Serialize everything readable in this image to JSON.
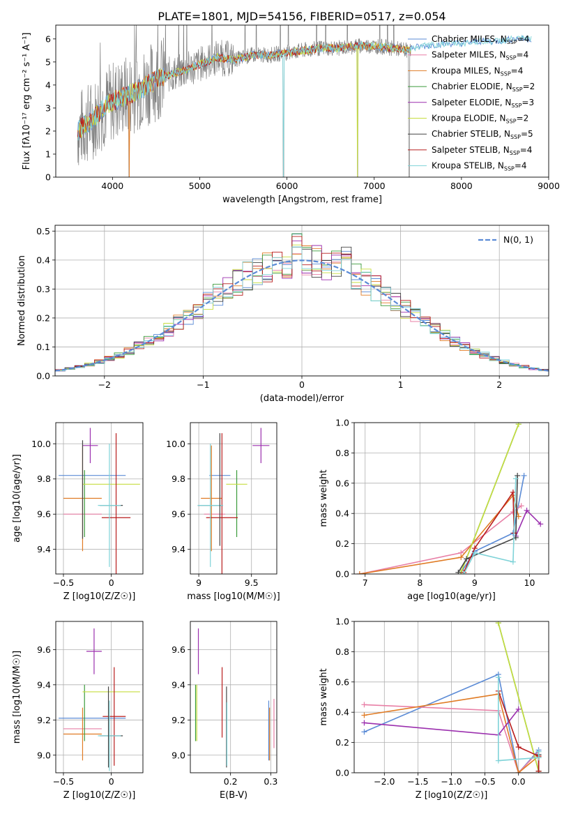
{
  "figure": {
    "title": "PLATE=1801, MJD=54156, FIBERID=0517, z=0.054"
  },
  "colors": {
    "Chabrier MILES": "#5b8bd6",
    "Salpeter MILES": "#e87fa6",
    "Kroupa MILES": "#e07b24",
    "Chabrier ELODIE": "#3a9b3a",
    "Salpeter ELODIE": "#9b2fae",
    "Kroupa ELODIE": "#c6dd3f",
    "Chabrier STELIB": "#444444",
    "Salpeter STELIB": "#b81c1c",
    "Kroupa STELIB": "#7fd3d8",
    "data": "#808080",
    "normal": "#5b8bd6"
  },
  "chart_data": [
    {
      "id": "spectrum",
      "type": "line",
      "title": "PLATE=1801, MJD=54156, FIBERID=0517, z=0.054",
      "xlabel": "wavelength [Angstrom, rest frame]",
      "ylabel": "Flux [fλ10⁻¹⁷ erg cm⁻² s⁻¹ A⁻¹]",
      "xlim": [
        3350,
        9000
      ],
      "ylim": [
        0,
        6.6
      ],
      "xticks": [
        4000,
        5000,
        6000,
        7000,
        8000,
        9000
      ],
      "yticks": [
        0,
        1,
        2,
        3,
        4,
        5,
        6
      ],
      "legend_position": "upper right",
      "legend": [
        "Chabrier MILES, N_SSP=4",
        "Salpeter MILES, N_SSP=4",
        "Kroupa MILES, N_SSP=4",
        "Chabrier ELODIE, N_SSP=2",
        "Salpeter ELODIE, N_SSP=3",
        "Kroupa ELODIE, N_SSP=2",
        "Chabrier STELIB, N_SSP=5",
        "Salpeter STELIB, N_SSP=4",
        "Kroupa STELIB, N_SSP=4"
      ],
      "continuum_wavelength": [
        3600,
        3700,
        3800,
        3900,
        4000,
        4200,
        4400,
        4600,
        4800,
        5000,
        5200,
        5400,
        5600,
        5800,
        6000,
        6200,
        6400,
        6600,
        6800,
        7000,
        7200,
        7400
      ],
      "continuum_flux": [
        2.0,
        2.3,
        2.6,
        3.0,
        3.3,
        3.6,
        4.0,
        4.4,
        4.6,
        4.9,
        5.2,
        5.1,
        5.3,
        5.3,
        5.4,
        5.5,
        5.6,
        5.6,
        5.7,
        5.7,
        5.6,
        5.5
      ],
      "model_extension_wavelength": [
        7400,
        7600,
        7800,
        8000,
        8200,
        8400,
        8600,
        8800
      ],
      "model_extension_flux": [
        5.6,
        5.7,
        5.8,
        5.8,
        5.9,
        5.9,
        6.0,
        6.0
      ],
      "notable_dips": [
        {
          "wavelength": 4190,
          "flux": 0.0
        },
        {
          "wavelength": 5960,
          "flux": 0.0
        },
        {
          "wavelength": 6810,
          "flux": 0.0
        },
        {
          "wavelength": 7400,
          "flux": 0.0
        }
      ]
    },
    {
      "id": "residuals",
      "type": "line",
      "xlabel": "(data-model)/error",
      "ylabel": "Normed distribution",
      "xlim": [
        -2.5,
        2.5
      ],
      "ylim": [
        0,
        0.52
      ],
      "xticks": [
        -2,
        -1,
        0,
        1,
        2
      ],
      "yticks": [
        0.0,
        0.1,
        0.2,
        0.3,
        0.4,
        0.5
      ],
      "legend_position": "upper right",
      "legend": [
        "N(0, 1)"
      ],
      "curve": "normal pdf, mean 0, sigma 1",
      "bin_width": 0.1,
      "bin_start": -2.5,
      "bins": 50
    },
    {
      "id": "age_vs_Z",
      "type": "scatter",
      "xlabel": "Z [log10(Z/Z☉)]",
      "ylabel": "age  [log10(age/yr)]",
      "xlim": [
        -0.58,
        0.33
      ],
      "ylim": [
        9.26,
        10.12
      ],
      "xticks": [
        -0.5,
        0.0
      ],
      "yticks": [
        9.4,
        9.6,
        9.8,
        10.0
      ],
      "points": [
        {
          "model": "Chabrier MILES",
          "x": -0.2,
          "y": 9.82,
          "xerr": 0.35,
          "yerr": 0.0
        },
        {
          "model": "Salpeter MILES",
          "x": -0.3,
          "y": 9.6,
          "xerr": 0.2,
          "yerr": 0.0
        },
        {
          "model": "Kroupa MILES",
          "x": -0.3,
          "y": 9.69,
          "xerr": 0.2,
          "yerr": 0.3
        },
        {
          "model": "Chabrier ELODIE",
          "x": -0.28,
          "y": 9.66,
          "xerr": 0.0,
          "yerr": 0.19
        },
        {
          "model": "Salpeter ELODIE",
          "x": -0.22,
          "y": 9.99,
          "xerr": 0.08,
          "yerr": 0.1
        },
        {
          "model": "Kroupa ELODIE",
          "x": 0.0,
          "y": 9.77,
          "xerr": 0.3,
          "yerr": 0.0
        },
        {
          "model": "Chabrier STELIB",
          "x": 0.0,
          "y": 9.65,
          "xerr": 0.12,
          "yerr": 0.0
        },
        {
          "model": "Salpeter STELIB",
          "x": 0.05,
          "y": 9.58,
          "xerr": 0.15,
          "yerr": 0.48
        },
        {
          "model": "Kroupa STELIB",
          "x": -0.02,
          "y": 9.65,
          "xerr": 0.12,
          "yerr": 0.35
        },
        {
          "model": "Chabrier STELIB",
          "x": -0.3,
          "y": 9.74,
          "xerr": 0.0,
          "yerr": 0.28
        }
      ]
    },
    {
      "id": "age_vs_mass",
      "type": "scatter",
      "xlabel": "mass [log10(M/M☉)]",
      "ylabel": "",
      "xlim": [
        8.92,
        9.74
      ],
      "ylim": [
        9.26,
        10.12
      ],
      "xticks": [
        9.0,
        9.5
      ],
      "yticks": [
        9.4,
        9.6,
        9.8,
        10.0
      ],
      "points": [
        {
          "model": "Chabrier MILES",
          "x": 9.2,
          "y": 9.82,
          "xerr": 0.1,
          "yerr": 0.0
        },
        {
          "model": "Salpeter MILES",
          "x": 9.15,
          "y": 9.6,
          "xerr": 0.1,
          "yerr": 0.0
        },
        {
          "model": "Kroupa MILES",
          "x": 9.12,
          "y": 9.69,
          "xerr": 0.1,
          "yerr": 0.3
        },
        {
          "model": "Chabrier ELODIE",
          "x": 9.36,
          "y": 9.66,
          "xerr": 0.0,
          "yerr": 0.19
        },
        {
          "model": "Salpeter ELODIE",
          "x": 9.59,
          "y": 9.99,
          "xerr": 0.08,
          "yerr": 0.1
        },
        {
          "model": "Kroupa ELODIE",
          "x": 9.36,
          "y": 9.77,
          "xerr": 0.1,
          "yerr": 0.0
        },
        {
          "model": "Chabrier STELIB",
          "x": 9.11,
          "y": 9.65,
          "xerr": 0.12,
          "yerr": 0.0
        },
        {
          "model": "Salpeter STELIB",
          "x": 9.22,
          "y": 9.58,
          "xerr": 0.15,
          "yerr": 0.48
        },
        {
          "model": "Kroupa STELIB",
          "x": 9.11,
          "y": 9.65,
          "xerr": 0.12,
          "yerr": 0.35
        },
        {
          "model": "Chabrier STELIB",
          "x": 9.2,
          "y": 9.74,
          "xerr": 0.0,
          "yerr": 0.32
        }
      ]
    },
    {
      "id": "weight_vs_age",
      "type": "line",
      "xlabel": "age  [log10(age/yr)]",
      "ylabel": "mass weight",
      "xlim": [
        6.8,
        10.35
      ],
      "ylim": [
        0,
        1.0
      ],
      "xticks": [
        7,
        8,
        9,
        10
      ],
      "yticks": [
        0.0,
        0.2,
        0.4,
        0.6,
        0.8,
        1.0
      ],
      "series": [
        {
          "model": "Chabrier MILES",
          "x": [
            8.75,
            9.0,
            9.7,
            9.9
          ],
          "y": [
            0.01,
            0.15,
            0.27,
            0.65
          ]
        },
        {
          "model": "Salpeter MILES",
          "x": [
            6.9,
            8.75,
            9.7,
            9.85
          ],
          "y": [
            0.0,
            0.14,
            0.41,
            0.45
          ]
        },
        {
          "model": "Kroupa MILES",
          "x": [
            6.9,
            8.75,
            9.7,
            9.8
          ],
          "y": [
            0.0,
            0.11,
            0.52,
            0.38
          ]
        },
        {
          "model": "Chabrier ELODIE",
          "x": [
            8.75,
            9.8
          ],
          "y": [
            0.01,
            0.99
          ]
        },
        {
          "model": "Salpeter ELODIE",
          "x": [
            9.75,
            9.95,
            10.2
          ],
          "y": [
            0.25,
            0.42,
            0.33
          ]
        },
        {
          "model": "Kroupa ELODIE",
          "x": [
            8.75,
            9.8
          ],
          "y": [
            0.01,
            0.99
          ]
        },
        {
          "model": "Chabrier STELIB",
          "x": [
            8.7,
            8.85,
            9.75,
            9.78
          ],
          "y": [
            0.01,
            0.1,
            0.24,
            0.65
          ]
        },
        {
          "model": "Salpeter STELIB",
          "x": [
            8.8,
            9.0,
            9.7,
            9.72
          ],
          "y": [
            0.01,
            0.17,
            0.54,
            0.27
          ]
        },
        {
          "model": "Kroupa STELIB",
          "x": [
            8.8,
            9.0,
            9.7,
            9.75
          ],
          "y": [
            0.0,
            0.14,
            0.08,
            0.63
          ]
        }
      ]
    },
    {
      "id": "mass_vs_Z",
      "type": "scatter",
      "xlabel": "Z [log10(Z/Z☉)]",
      "ylabel": "mass [log10(M/M☉)]",
      "xlim": [
        -0.58,
        0.33
      ],
      "ylim": [
        8.9,
        9.76
      ],
      "xticks": [
        -0.5,
        0.0
      ],
      "yticks": [
        9.0,
        9.2,
        9.4,
        9.6
      ],
      "points": [
        {
          "model": "Chabrier MILES",
          "x": -0.2,
          "y": 9.21,
          "xerr": 0.35,
          "yerr": 0.0
        },
        {
          "model": "Salpeter MILES",
          "x": -0.3,
          "y": 9.15,
          "xerr": 0.2,
          "yerr": 0.0
        },
        {
          "model": "Kroupa MILES",
          "x": -0.3,
          "y": 9.12,
          "xerr": 0.2,
          "yerr": 0.15
        },
        {
          "model": "Chabrier ELODIE",
          "x": -0.28,
          "y": 9.24,
          "xerr": 0.0,
          "yerr": 0.16
        },
        {
          "model": "Salpeter ELODIE",
          "x": -0.18,
          "y": 9.59,
          "xerr": 0.08,
          "yerr": 0.13
        },
        {
          "model": "Kroupa ELODIE",
          "x": 0.0,
          "y": 9.36,
          "xerr": 0.3,
          "yerr": 0.0
        },
        {
          "model": "Chabrier STELIB",
          "x": 0.0,
          "y": 9.11,
          "xerr": 0.12,
          "yerr": 0.0
        },
        {
          "model": "Salpeter STELIB",
          "x": 0.03,
          "y": 9.22,
          "xerr": 0.12,
          "yerr": 0.28
        },
        {
          "model": "Kroupa STELIB",
          "x": -0.02,
          "y": 9.11,
          "xerr": 0.12,
          "yerr": 0.2
        },
        {
          "model": "Chabrier STELIB",
          "x": -0.03,
          "y": 9.16,
          "xerr": 0.0,
          "yerr": 0.23
        }
      ]
    },
    {
      "id": "mass_vs_EBV",
      "type": "scatter",
      "xlabel": "E(B-V)",
      "ylabel": "",
      "xlim": [
        0.1,
        0.315
      ],
      "ylim": [
        8.9,
        9.76
      ],
      "xticks": [
        0.2,
        0.3
      ],
      "yticks": [
        9.0,
        9.2,
        9.4,
        9.6
      ],
      "points": [
        {
          "model": "Chabrier ELODIE",
          "x": 0.113,
          "y": 9.24,
          "yerr": 0.16
        },
        {
          "model": "Kroupa ELODIE",
          "x": 0.116,
          "y": 9.24,
          "yerr": 0.16
        },
        {
          "model": "Salpeter ELODIE",
          "x": 0.12,
          "y": 9.59,
          "yerr": 0.13
        },
        {
          "model": "Salpeter STELIB",
          "x": 0.179,
          "y": 9.3,
          "yerr": 0.2
        },
        {
          "model": "Chabrier STELIB",
          "x": 0.19,
          "y": 9.16,
          "yerr": 0.23
        },
        {
          "model": "Kroupa STELIB",
          "x": 0.191,
          "y": 9.12,
          "yerr": 0.18
        },
        {
          "model": "Chabrier MILES",
          "x": 0.295,
          "y": 9.14,
          "yerr": 0.17
        },
        {
          "model": "Kroupa MILES",
          "x": 0.297,
          "y": 9.12,
          "yerr": 0.15
        },
        {
          "model": "Salpeter MILES",
          "x": 0.308,
          "y": 9.18,
          "yerr": 0.14
        }
      ]
    },
    {
      "id": "weight_vs_Z",
      "type": "line",
      "xlabel": "Z [log10(Z/Z☉)]",
      "ylabel": "mass weight",
      "xlim": [
        -2.45,
        0.45
      ],
      "ylim": [
        0,
        1.0
      ],
      "xticks": [
        -2.0,
        -1.5,
        -1.0,
        -0.5,
        0.0
      ],
      "yticks": [
        0.0,
        0.2,
        0.4,
        0.6,
        0.8,
        1.0
      ],
      "series": [
        {
          "model": "Chabrier MILES",
          "x": [
            -2.3,
            -0.3,
            0.0,
            0.3
          ],
          "y": [
            0.27,
            0.65,
            0.0,
            0.15
          ]
        },
        {
          "model": "Salpeter MILES",
          "x": [
            -2.3,
            -0.3,
            0.0,
            0.3
          ],
          "y": [
            0.45,
            0.41,
            0.0,
            0.14
          ]
        },
        {
          "model": "Kroupa MILES",
          "x": [
            -2.3,
            -0.3,
            0.0,
            0.3
          ],
          "y": [
            0.38,
            0.52,
            0.0,
            0.11
          ]
        },
        {
          "model": "Chabrier ELODIE",
          "x": [
            -0.3,
            0.3
          ],
          "y": [
            0.99,
            0.01
          ]
        },
        {
          "model": "Salpeter ELODIE",
          "x": [
            -2.3,
            -0.3,
            0.0
          ],
          "y": [
            0.33,
            0.25,
            0.42
          ]
        },
        {
          "model": "Kroupa ELODIE",
          "x": [
            -0.3,
            0.3
          ],
          "y": [
            0.99,
            0.01
          ]
        },
        {
          "model": "Chabrier STELIB",
          "x": [
            0.3,
            0.3,
            0.3
          ],
          "y": [
            0.01,
            0.1,
            0.12
          ]
        },
        {
          "model": "Salpeter STELIB",
          "x": [
            -0.3,
            0.0,
            0.3,
            0.3
          ],
          "y": [
            0.54,
            0.17,
            0.11,
            0.01
          ]
        },
        {
          "model": "Kroupa STELIB",
          "x": [
            -0.3,
            -0.3,
            0.3,
            0.3
          ],
          "y": [
            0.63,
            0.08,
            0.1,
            0.14
          ]
        }
      ]
    }
  ]
}
